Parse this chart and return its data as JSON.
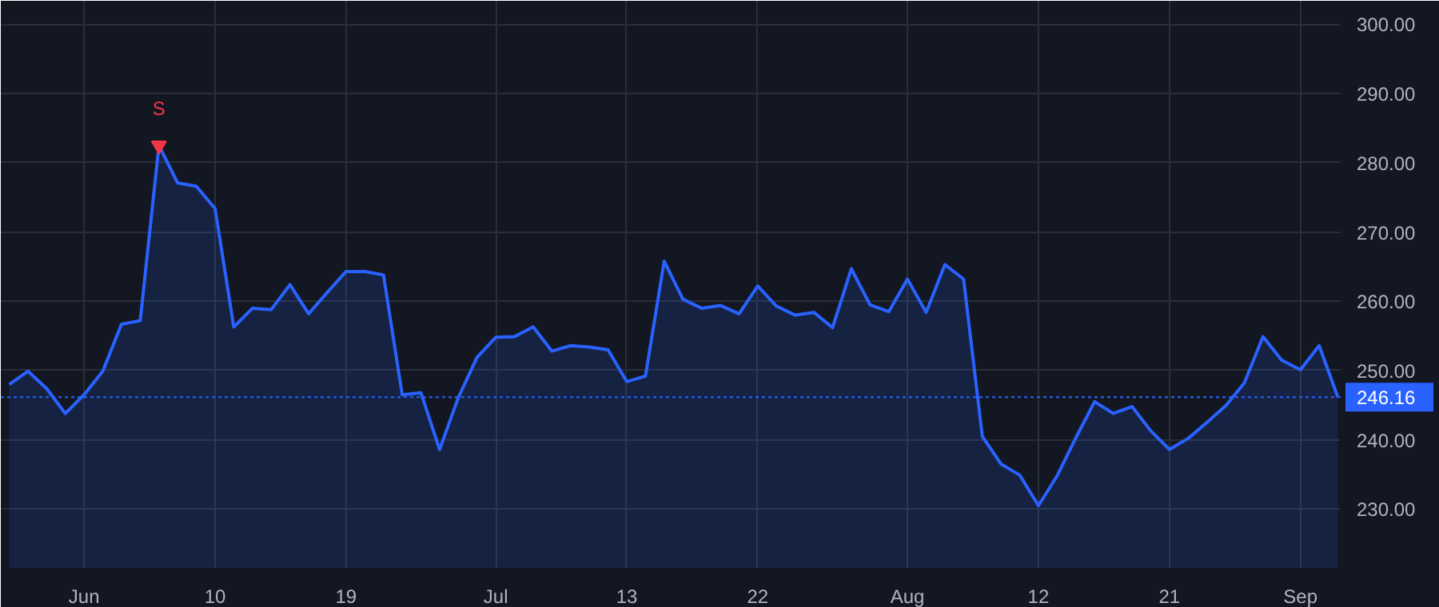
{
  "chart_data": {
    "type": "area",
    "categories": [
      null,
      null,
      null,
      null,
      "Jun",
      null,
      null,
      null,
      null,
      null,
      null,
      "10",
      null,
      null,
      null,
      null,
      null,
      null,
      "19",
      null,
      null,
      null,
      null,
      null,
      null,
      null,
      "Jul",
      null,
      null,
      null,
      null,
      null,
      null,
      "13",
      null,
      null,
      null,
      null,
      null,
      null,
      "22",
      null,
      null,
      null,
      null,
      null,
      null,
      null,
      "Aug",
      null,
      null,
      null,
      null,
      null,
      null,
      "12",
      null,
      null,
      null,
      null,
      null,
      null,
      "21",
      null,
      null,
      null,
      null,
      null,
      null,
      "Sep",
      null,
      null
    ],
    "series": [
      {
        "color": "#2962ff",
        "values": [
          248.0,
          249.9,
          247.4,
          243.8,
          246.5,
          249.9,
          256.7,
          257.2,
          282.5,
          277.1,
          276.6,
          273.4,
          256.3,
          259.0,
          258.8,
          262.4,
          258.2,
          261.3,
          264.3,
          264.3,
          263.8,
          246.5,
          246.8,
          238.6,
          246.1,
          251.9,
          254.8,
          254.9,
          256.3,
          252.8,
          253.6,
          253.4,
          253.0,
          248.4,
          249.2,
          265.8,
          260.3,
          259.0,
          259.4,
          258.2,
          262.2,
          259.3,
          258.0,
          258.4,
          256.2,
          264.7,
          259.5,
          258.5,
          263.2,
          258.4,
          265.3,
          263.2,
          240.5,
          236.5,
          234.9,
          230.5,
          234.8,
          240.3,
          245.5,
          243.8,
          244.8,
          241.3,
          238.6,
          240.2,
          242.5,
          244.9,
          248.2,
          254.9,
          251.5,
          250.1,
          253.6,
          246.16
        ]
      }
    ],
    "ylim": [
      221.5,
      303.4
    ],
    "yticks": [
      {
        "value": 230,
        "label": "230.00"
      },
      {
        "value": 240,
        "label": "240.00"
      },
      {
        "value": 250,
        "label": "250.00"
      },
      {
        "value": 260,
        "label": "260.00"
      },
      {
        "value": 270,
        "label": "270.00"
      },
      {
        "value": 280,
        "label": "280.00"
      },
      {
        "value": 290,
        "label": "290.00"
      },
      {
        "value": 300,
        "label": "300.00"
      }
    ],
    "ref_lines": [
      {
        "axis": "y",
        "value": 246.16,
        "label": "246.16",
        "color": "#2962ff",
        "line_style": "dotted"
      }
    ],
    "annotations": [
      {
        "text": "S",
        "y": 282.5
      }
    ],
    "grid": true
  }
}
